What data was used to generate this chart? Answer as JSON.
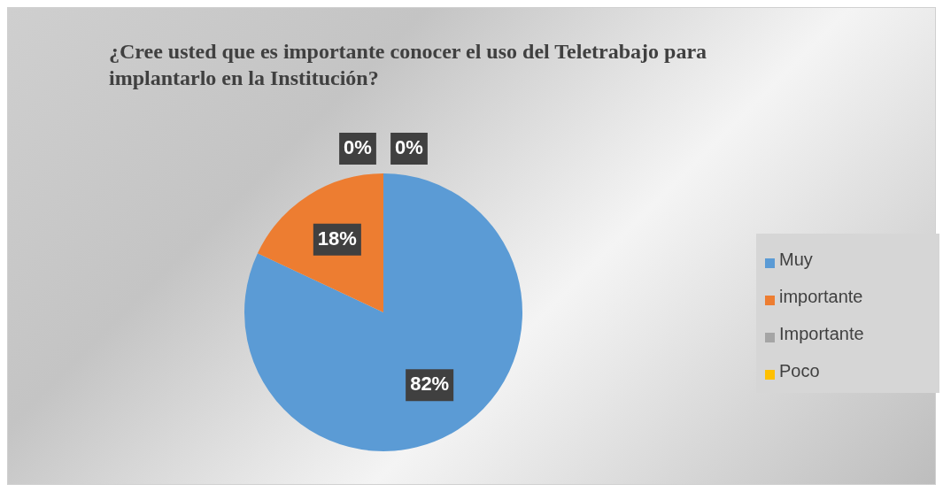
{
  "chart_data": {
    "type": "pie",
    "title": "¿Cree usted que es importante conocer el uso del Teletrabajo para implantarlo en la Institución?",
    "categories": [
      "Muy",
      "importante",
      "Importante",
      "Poco"
    ],
    "values": [
      82,
      18,
      0,
      0
    ],
    "colors": [
      "#5b9bd5",
      "#ed7d31",
      "#a5a5a5",
      "#ffc000"
    ],
    "value_labels": [
      "82%",
      "18%",
      "0%",
      "0%"
    ],
    "legend": "right"
  }
}
